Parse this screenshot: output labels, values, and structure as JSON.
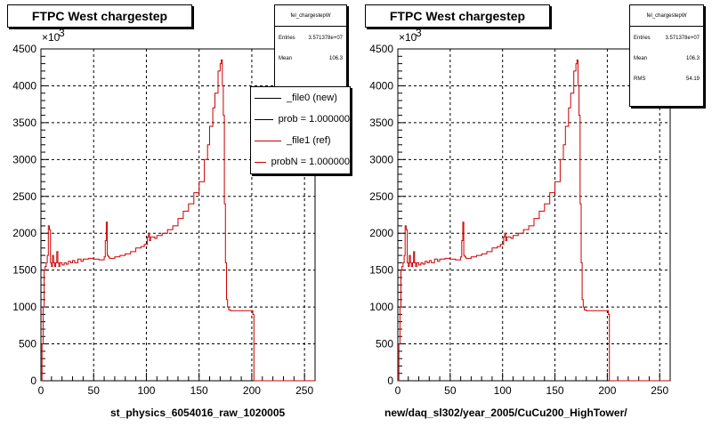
{
  "panels": [
    {
      "title": "FTPC West chargestep",
      "stats": {
        "name": "fel_chargestepW",
        "rows": [
          {
            "label": "Entries",
            "value": "3.571378e+07"
          },
          {
            "label": "Mean",
            "value": "106.3"
          }
        ]
      },
      "legend": [
        {
          "label": "_file0 (new)",
          "color": "#000000"
        },
        {
          "label": "prob = 1.000000",
          "color": "#000000"
        },
        {
          "label": "_file1 (ref)",
          "color": "#cc0000"
        },
        {
          "label": "probN = 1.000000",
          "color": "#cc0000"
        }
      ],
      "xlabel": "st_physics_6054016_raw_1020005"
    },
    {
      "title": "FTPC West chargestep",
      "stats": {
        "name": "fel_chargestepW",
        "rows": [
          {
            "label": "Entries",
            "value": "3.571378e+07"
          },
          {
            "label": "Mean",
            "value": "106.3"
          },
          {
            "label": "RMS",
            "value": "54.19"
          }
        ]
      },
      "legend": [],
      "xlabel": "new/daq_sl302/year_2005/CuCu200_HighTower/"
    }
  ],
  "footer": "",
  "chart_data": [
    {
      "type": "line",
      "title": "FTPC West chargestep",
      "xlabel": "st_physics_6054016_raw_1020005",
      "ylabel": "",
      "y_exponent_label": "×10",
      "y_exponent_power": "3",
      "xlim": [
        0,
        260
      ],
      "ylim": [
        0,
        4500
      ],
      "x_ticks": [
        0,
        50,
        100,
        150,
        200,
        250
      ],
      "y_ticks": [
        0,
        500,
        1000,
        1500,
        2000,
        2500,
        3000,
        3500,
        4000,
        4500
      ],
      "grid": true,
      "legend_position": "top-right",
      "series": [
        {
          "name": "_file1 (ref)",
          "color": "#cc0000",
          "x": [
            0,
            1,
            2,
            3,
            4,
            5,
            6,
            7,
            8,
            9,
            10,
            11,
            12,
            13,
            14,
            15,
            16,
            17,
            18,
            20,
            22,
            24,
            26,
            28,
            30,
            32,
            35,
            38,
            40,
            45,
            50,
            55,
            60,
            61,
            62,
            63,
            64,
            65,
            70,
            75,
            80,
            85,
            90,
            95,
            98,
            100,
            101,
            102,
            103,
            104,
            105,
            108,
            110,
            115,
            120,
            125,
            130,
            135,
            140,
            145,
            150,
            155,
            158,
            160,
            163,
            165,
            168,
            170,
            171,
            172,
            173,
            174,
            175,
            176,
            177,
            178,
            180,
            185,
            190,
            195,
            200,
            201,
            202,
            203,
            260
          ],
          "values": [
            0,
            500,
            1000,
            1500,
            1550,
            1600,
            1700,
            2100,
            2050,
            1600,
            1550,
            1700,
            1600,
            1550,
            1600,
            1750,
            1600,
            1550,
            1600,
            1570,
            1600,
            1580,
            1620,
            1600,
            1630,
            1600,
            1650,
            1620,
            1650,
            1660,
            1650,
            1640,
            1680,
            1900,
            2150,
            1700,
            1680,
            1660,
            1680,
            1700,
            1720,
            1750,
            1800,
            1820,
            1850,
            1850,
            1950,
            2000,
            1900,
            1950,
            1950,
            1930,
            1970,
            2000,
            2050,
            2100,
            2200,
            2300,
            2400,
            2550,
            2700,
            3000,
            3200,
            3450,
            3700,
            3900,
            4200,
            4300,
            4350,
            4000,
            3600,
            2400,
            1600,
            1100,
            1000,
            960,
            950,
            950,
            950,
            950,
            950,
            900,
            0,
            0,
            0
          ]
        }
      ]
    },
    {
      "type": "line",
      "title": "FTPC West chargestep",
      "xlabel": "new/daq_sl302/year_2005/CuCu200_HighTower/",
      "ylabel": "",
      "y_exponent_label": "×10",
      "y_exponent_power": "3",
      "xlim": [
        0,
        260
      ],
      "ylim": [
        0,
        4500
      ],
      "x_ticks": [
        0,
        50,
        100,
        150,
        200,
        250
      ],
      "y_ticks": [
        0,
        500,
        1000,
        1500,
        2000,
        2500,
        3000,
        3500,
        4000,
        4500
      ],
      "grid": true,
      "series": [
        {
          "name": "",
          "color": "#cc0000",
          "x": [
            0,
            1,
            2,
            3,
            4,
            5,
            6,
            7,
            8,
            9,
            10,
            11,
            12,
            13,
            14,
            15,
            16,
            17,
            18,
            20,
            22,
            24,
            26,
            28,
            30,
            32,
            35,
            38,
            40,
            45,
            50,
            55,
            60,
            61,
            62,
            63,
            64,
            65,
            70,
            75,
            80,
            85,
            90,
            95,
            98,
            100,
            101,
            102,
            103,
            104,
            105,
            108,
            110,
            115,
            120,
            125,
            130,
            135,
            140,
            145,
            150,
            155,
            158,
            160,
            163,
            165,
            168,
            170,
            171,
            172,
            173,
            174,
            175,
            176,
            177,
            178,
            180,
            185,
            190,
            195,
            200,
            201,
            202,
            203,
            260
          ],
          "values": [
            0,
            500,
            1000,
            1500,
            1550,
            1600,
            1700,
            2100,
            2050,
            1600,
            1550,
            1700,
            1600,
            1550,
            1600,
            1750,
            1600,
            1550,
            1600,
            1570,
            1600,
            1580,
            1620,
            1600,
            1630,
            1600,
            1650,
            1620,
            1650,
            1660,
            1650,
            1640,
            1680,
            1900,
            2150,
            1700,
            1680,
            1660,
            1680,
            1700,
            1720,
            1750,
            1800,
            1820,
            1850,
            1850,
            1950,
            2000,
            1900,
            1950,
            1950,
            1930,
            1970,
            2000,
            2050,
            2100,
            2200,
            2300,
            2400,
            2550,
            2700,
            3000,
            3200,
            3450,
            3700,
            3900,
            4200,
            4300,
            4350,
            4000,
            3600,
            2400,
            1600,
            1100,
            1000,
            960,
            950,
            950,
            950,
            950,
            950,
            900,
            0,
            0,
            0
          ]
        }
      ]
    }
  ]
}
